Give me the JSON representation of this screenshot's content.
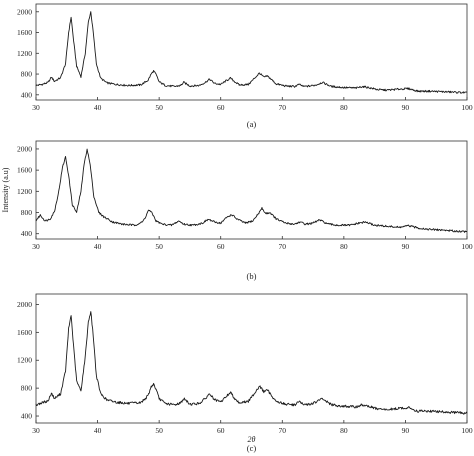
{
  "chart_data": [
    {
      "type": "line",
      "panel_label": "(a)",
      "xlabel": "",
      "ylabel": "",
      "xlim": [
        30,
        100
      ],
      "ylim": [
        300,
        2150
      ],
      "x_ticks": [
        30,
        40,
        50,
        60,
        70,
        80,
        90,
        100
      ],
      "y_ticks": [
        400,
        800,
        1200,
        1600,
        2000
      ],
      "grid": false,
      "series": [
        {
          "x": [
            30,
            31,
            32,
            32.5,
            33,
            34,
            34.8,
            35.3,
            35.7,
            36.1,
            36.6,
            37.3,
            38,
            38.5,
            38.9,
            39.3,
            39.8,
            40.5,
            41.5,
            43,
            45,
            47,
            48.2,
            48.7,
            49.1,
            49.5,
            50,
            51,
            52.5,
            53.5,
            54,
            55,
            56.5,
            57.5,
            58.2,
            59,
            60,
            61,
            61.6,
            62.2,
            63,
            64.5,
            65.5,
            66.3,
            67,
            67.6,
            68.2,
            69,
            70.5,
            72,
            72.7,
            73.5,
            74.5,
            75.5,
            76.5,
            78,
            80,
            82,
            83,
            84,
            85.5,
            87,
            89,
            90.5,
            92,
            94,
            96,
            98,
            100
          ],
          "values": [
            580,
            600,
            640,
            740,
            660,
            730,
            1000,
            1600,
            1900,
            1450,
            950,
            750,
            1200,
            1800,
            2000,
            1600,
            1000,
            720,
            630,
            600,
            580,
            590,
            680,
            800,
            860,
            790,
            650,
            580,
            560,
            580,
            640,
            570,
            580,
            640,
            700,
            620,
            600,
            680,
            720,
            660,
            590,
            600,
            720,
            820,
            740,
            760,
            700,
            610,
            570,
            560,
            600,
            560,
            570,
            590,
            640,
            560,
            540,
            530,
            560,
            540,
            500,
            490,
            510,
            520,
            470,
            470,
            460,
            450,
            440
          ]
        }
      ]
    },
    {
      "type": "line",
      "panel_label": "(b)",
      "xlabel": "",
      "ylabel": "Intensity (a.u)",
      "xlim": [
        30,
        100
      ],
      "ylim": [
        300,
        2150
      ],
      "x_ticks": [
        30,
        40,
        50,
        60,
        70,
        80,
        90,
        100
      ],
      "y_ticks": [
        400,
        800,
        1200,
        1600,
        2000
      ],
      "grid": false,
      "series": [
        {
          "x": [
            30,
            30.7,
            31.5,
            32.3,
            33,
            33.7,
            34.3,
            34.8,
            35.3,
            35.9,
            36.6,
            37.3,
            37.8,
            38.3,
            38.8,
            39.4,
            40.2,
            41,
            42.5,
            44,
            46,
            47.3,
            47.8,
            48.3,
            48.9,
            49.5,
            50.5,
            52,
            53.2,
            54,
            55.5,
            57,
            58,
            59,
            60,
            61,
            61.8,
            62.6,
            64,
            65.2,
            66,
            66.7,
            67.3,
            68,
            69,
            70.5,
            72,
            72.8,
            73.8,
            75,
            76,
            77.5,
            79,
            81,
            82.5,
            83.5,
            85,
            87,
            89,
            90.5,
            92,
            94,
            96,
            98,
            100
          ],
          "values": [
            650,
            750,
            640,
            680,
            820,
            1200,
            1650,
            1850,
            1500,
            950,
            800,
            1200,
            1700,
            2000,
            1700,
            1100,
            800,
            720,
            620,
            580,
            560,
            620,
            720,
            850,
            780,
            640,
            580,
            560,
            640,
            580,
            560,
            600,
            670,
            620,
            600,
            710,
            760,
            680,
            600,
            640,
            760,
            880,
            780,
            800,
            680,
            600,
            580,
            620,
            580,
            600,
            660,
            580,
            560,
            560,
            600,
            620,
            560,
            540,
            520,
            550,
            510,
            480,
            470,
            450,
            440
          ]
        }
      ]
    },
    {
      "type": "line",
      "panel_label": "(c)",
      "xlabel": "2θ",
      "ylabel": "",
      "xlim": [
        30,
        100
      ],
      "ylim": [
        300,
        2150
      ],
      "x_ticks": [
        30,
        40,
        50,
        60,
        70,
        80,
        90,
        100
      ],
      "y_ticks": [
        400,
        800,
        1200,
        1600,
        2000
      ],
      "grid": false,
      "series": [
        {
          "x": [
            30,
            31,
            32,
            32.5,
            33,
            34,
            34.8,
            35.3,
            35.7,
            36.1,
            36.6,
            37.3,
            38,
            38.5,
            38.9,
            39.3,
            39.8,
            40.5,
            41.5,
            43,
            45,
            47,
            48.2,
            48.7,
            49.1,
            49.5,
            50,
            51,
            52.5,
            53.5,
            54,
            55,
            56.5,
            57.5,
            58.2,
            59,
            60,
            61,
            61.6,
            62.2,
            63,
            64.5,
            65.5,
            66.3,
            67,
            67.6,
            68.2,
            69,
            70.5,
            72,
            72.7,
            73.5,
            74.5,
            75.5,
            76.5,
            78,
            80,
            82,
            83,
            84,
            85.5,
            87,
            89,
            90.5,
            92,
            94,
            96,
            98,
            100
          ],
          "values": [
            560,
            590,
            620,
            730,
            650,
            720,
            1050,
            1650,
            1850,
            1400,
            900,
            760,
            1250,
            1750,
            1900,
            1550,
            980,
            720,
            630,
            600,
            580,
            590,
            690,
            820,
            860,
            780,
            650,
            580,
            560,
            590,
            650,
            570,
            580,
            650,
            720,
            630,
            600,
            690,
            740,
            660,
            590,
            610,
            730,
            830,
            750,
            770,
            700,
            610,
            570,
            560,
            610,
            560,
            570,
            600,
            650,
            560,
            540,
            530,
            560,
            540,
            500,
            490,
            510,
            520,
            470,
            470,
            460,
            450,
            440
          ]
        }
      ]
    }
  ],
  "colors": {
    "line": "#1a1a1a",
    "axis": "#333333",
    "background": "#ffffff"
  }
}
